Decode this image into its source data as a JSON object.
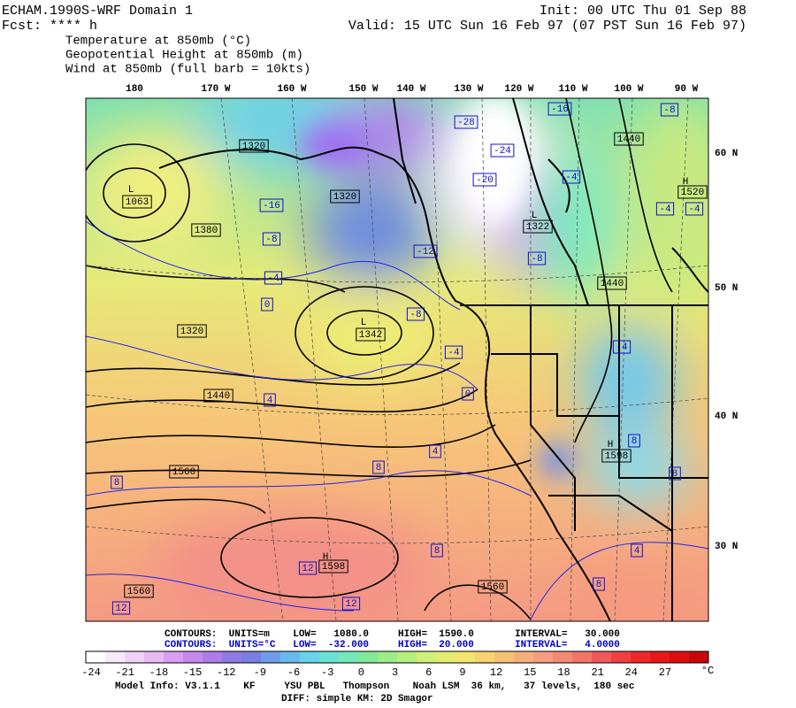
{
  "header": {
    "model": "ECHAM.1990S-WRF Domain 1",
    "init": "Init: 00 UTC Thu 01 Sep 88",
    "fcst": "Fcst: **** h",
    "valid": "Valid: 15 UTC Sun 16 Feb 97 (07 PST Sun 16 Feb 97)",
    "fields": [
      "Temperature at 850mb (°C)",
      "Geopotential Height at 850mb (m)",
      "Wind at 850mb (full barb = 10kts)"
    ]
  },
  "map": {
    "longitudes": [
      "180",
      "170 W",
      "160 W",
      "150 W",
      "140 W",
      "130 W",
      "120 W",
      "110 W",
      "100 W",
      "90 W"
    ],
    "latitudes": [
      "60 N",
      "50 N",
      "40 N",
      "30 N"
    ],
    "height_labels": [
      "1320",
      "1063",
      "1320",
      "1380",
      "1320",
      "1440",
      "1560",
      "1560",
      "1560",
      "1598",
      "1342",
      "1322",
      "1440",
      "1440",
      "1520",
      "1598"
    ],
    "center_marks": [
      "L",
      "L",
      "L",
      "H",
      "H",
      "H"
    ],
    "temperature_labels": [
      "-28",
      "-16",
      "-8",
      "-24",
      "-20",
      "-4",
      "-4",
      "-4",
      "-16",
      "-8",
      "-4",
      "0",
      "-12",
      "-8",
      "-8",
      "-4",
      "-4",
      "0",
      "4",
      "4",
      "8",
      "8",
      "8",
      "12",
      "12",
      "12",
      "8",
      "8",
      "4",
      "8"
    ]
  },
  "contours_info": [
    "CONTOURS:  UNITS=m    LOW=   1080.0     HIGH=  1590.0       INTERVAL=   30.000",
    "CONTOURS:  UNITS=°C   LOW=  -32.000     HIGH=  20.000       INTERVAL=   4.0000"
  ],
  "colorbar": {
    "labels": [
      "-24",
      "-21",
      "-18",
      "-15",
      "-12",
      "-9",
      "-6",
      "-3",
      "0",
      "3",
      "6",
      "9",
      "12",
      "15",
      "18",
      "21",
      "24",
      "27"
    ],
    "unit": "°C"
  },
  "footer": [
    "Model Info: V3.1.1    KF     YSU PBL   Thompson    Noah LSM  36 km,   37 levels,  180 sec",
    "DIFF: simple KM: 2D Smagor"
  ]
}
